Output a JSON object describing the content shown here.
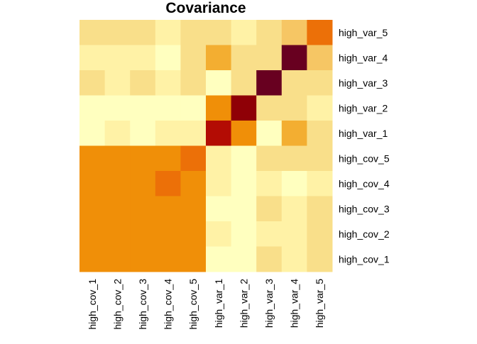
{
  "chart_data": {
    "type": "heatmap",
    "title": "Covariance",
    "xlabel": "",
    "ylabel": "",
    "x_categories": [
      "high_cov_1",
      "high_cov_2",
      "high_cov_3",
      "high_cov_4",
      "high_cov_5",
      "high_var_1",
      "high_var_2",
      "high_var_3",
      "high_var_4",
      "high_var_5"
    ],
    "y_categories_top_to_bottom": [
      "high_var_5",
      "high_var_4",
      "high_var_3",
      "high_var_2",
      "high_var_1",
      "high_cov_5",
      "high_cov_4",
      "high_cov_3",
      "high_cov_2",
      "high_cov_1"
    ],
    "color_scale": [
      "#FFFFBF",
      "#FFF2A6",
      "#F9DF8A",
      "#F6C664",
      "#F3AE31",
      "#F08F08",
      "#EC7008",
      "#B30C04",
      "#8F0006",
      "#680020"
    ],
    "values_level": [
      [
        2,
        2,
        2,
        1,
        2,
        2,
        1,
        2,
        3,
        6
      ],
      [
        1,
        1,
        1,
        0,
        2,
        4,
        2,
        2,
        9,
        3
      ],
      [
        2,
        1,
        2,
        1,
        2,
        0,
        2,
        9,
        2,
        2
      ],
      [
        0,
        0,
        0,
        0,
        0,
        5,
        8,
        2,
        2,
        1
      ],
      [
        0,
        1,
        0,
        1,
        1,
        7,
        5,
        0,
        4,
        2
      ],
      [
        5,
        5,
        5,
        5,
        6,
        1,
        0,
        2,
        2,
        2
      ],
      [
        5,
        5,
        5,
        6,
        5,
        1,
        0,
        1,
        0,
        1
      ],
      [
        5,
        5,
        5,
        5,
        5,
        0,
        0,
        2,
        1,
        2
      ],
      [
        5,
        5,
        5,
        5,
        5,
        1,
        0,
        1,
        1,
        2
      ],
      [
        5,
        5,
        5,
        5,
        5,
        0,
        0,
        2,
        1,
        2
      ]
    ],
    "legend": "none",
    "grid": false
  }
}
